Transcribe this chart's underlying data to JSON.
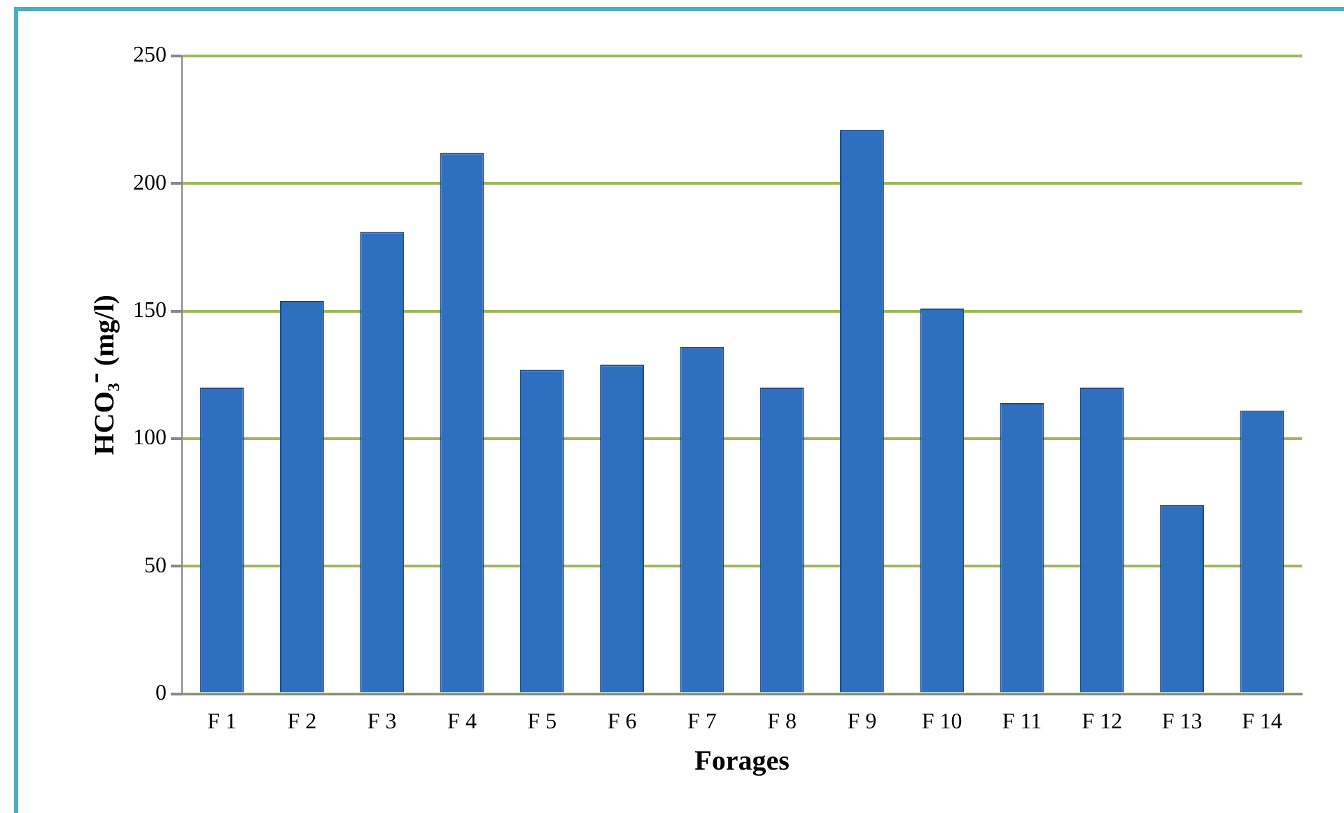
{
  "chart_data": {
    "type": "bar",
    "xlabel": "Forages",
    "ylabel": "HCO₃⁻ (mg/l)",
    "categories": [
      "F 1",
      "F 2",
      "F 3",
      "F 4",
      "F 5",
      "F 6",
      "F 7",
      "F 8",
      "F 9",
      "F 10",
      "F 11",
      "F 12",
      "F 13",
      "F 14"
    ],
    "values": [
      120,
      154,
      181,
      212,
      127,
      129,
      136,
      120,
      221,
      151,
      114,
      120,
      74,
      111
    ],
    "color": "#2f6fc0",
    "ylim": [
      0,
      250
    ],
    "yticks": [
      0,
      50,
      100,
      150,
      200,
      250
    ],
    "grid": "y",
    "legend": false
  }
}
